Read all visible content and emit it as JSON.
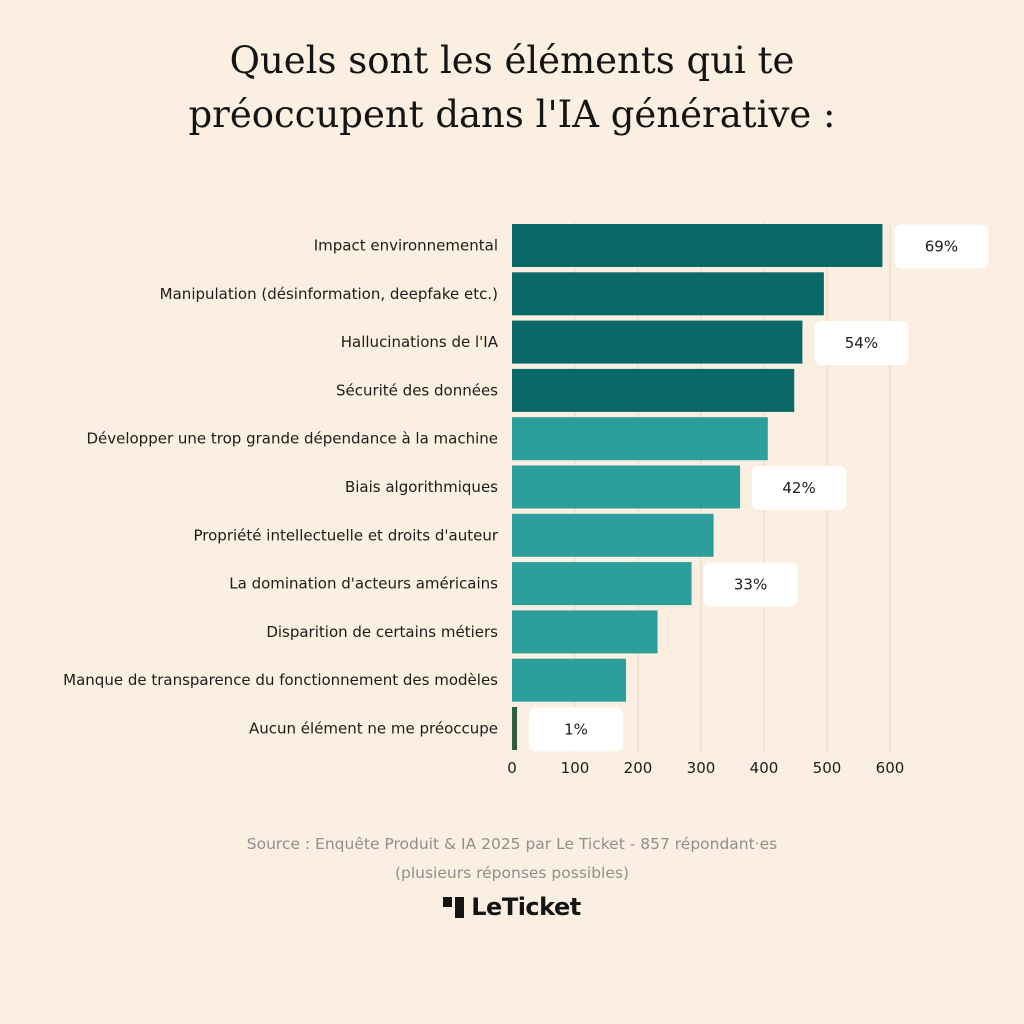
{
  "title_lines": [
    "Quels sont les éléments qui te",
    "préoccupent dans l'IA générative :"
  ],
  "source_lines": [
    "Source : Enquête Produit & IA 2025 par Le Ticket - 857 répondant·es",
    "(plusieurs réponses possibles)"
  ],
  "brand": {
    "name": "LeTicket",
    "logo_icon": "le-ticket-logo-icon"
  },
  "colors": {
    "background": "#FBEFE1",
    "bar_dark": "#0A6966",
    "bar_light": "#2C9E9B",
    "bar_none": "#2D5E3E",
    "grid": "#E7DACB",
    "callout_bg": "#FFFFFF"
  },
  "chart_data": {
    "type": "bar",
    "orientation": "horizontal",
    "categories": [
      "Impact environnemental",
      "Manipulation (désinformation, deepfake etc.)",
      "Hallucinations de l'IA",
      "Sécurité des données",
      "Développer une trop grande dépendance à la machine",
      "Biais algorithmiques",
      "Propriété intellectuelle et droits d'auteur",
      "La domination d'acteurs américains",
      "Disparition de certains métiers",
      "Manque de transparence du fonctionnement des modèles",
      "Aucun élément ne me préoccupe"
    ],
    "values": [
      588,
      495,
      461,
      448,
      406,
      362,
      320,
      285,
      231,
      181,
      8
    ],
    "color_groups": [
      "dark",
      "dark",
      "dark",
      "dark",
      "light",
      "light",
      "light",
      "light",
      "light",
      "light",
      "none"
    ],
    "annotations": [
      {
        "category_index": 0,
        "text": "69%"
      },
      {
        "category_index": 2,
        "text": "54%"
      },
      {
        "category_index": 5,
        "text": "42%"
      },
      {
        "category_index": 7,
        "text": "33%"
      },
      {
        "category_index": 10,
        "text": "1%"
      }
    ],
    "xlim": [
      0,
      600
    ],
    "x_ticks": [
      "0",
      "100",
      "200",
      "300",
      "400",
      "500",
      "600"
    ],
    "x_tick_values": [
      0,
      100,
      200,
      300,
      400,
      500,
      600
    ],
    "grid": true,
    "legend": "none",
    "title": "Quels sont les éléments qui te préoccupent dans l'IA générative :",
    "xlabel": "",
    "ylabel": ""
  }
}
